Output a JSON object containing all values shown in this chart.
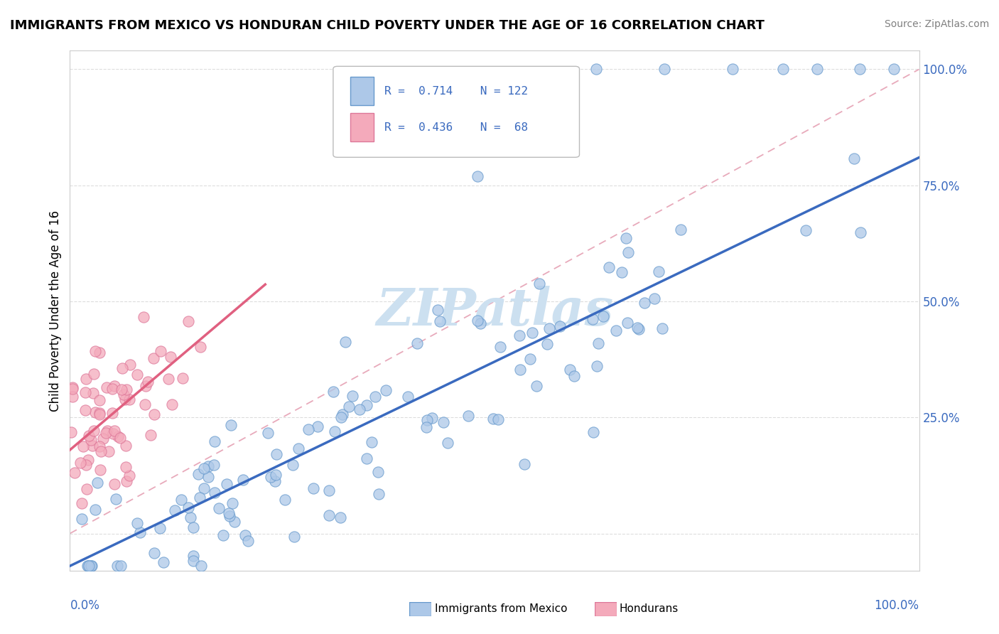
{
  "title": "IMMIGRANTS FROM MEXICO VS HONDURAN CHILD POVERTY UNDER THE AGE OF 16 CORRELATION CHART",
  "source": "Source: ZipAtlas.com",
  "ylabel": "Child Poverty Under the Age of 16",
  "legend_label1": "Immigrants from Mexico",
  "legend_label2": "Hondurans",
  "R1": 0.714,
  "N1": 122,
  "R2": 0.436,
  "N2": 68,
  "blue_fill": "#adc8e8",
  "blue_edge": "#6699cc",
  "pink_fill": "#f4aabb",
  "pink_edge": "#dd7799",
  "blue_line_color": "#3a6abf",
  "pink_line_color": "#e06080",
  "diag_color": "#e8aabb",
  "watermark_color": "#cce0f0",
  "ytick_color": "#3a6abf",
  "xtext_color": "#3a6abf",
  "title_fontsize": 13,
  "source_fontsize": 10,
  "blue_line_slope": 0.88,
  "blue_line_intercept": -0.07,
  "pink_line_slope": 1.55,
  "pink_line_intercept": 0.18,
  "pink_line_xmax": 0.23,
  "ylim_min": -0.08,
  "ylim_max": 1.04,
  "xlim_min": 0.0,
  "xlim_max": 1.0
}
